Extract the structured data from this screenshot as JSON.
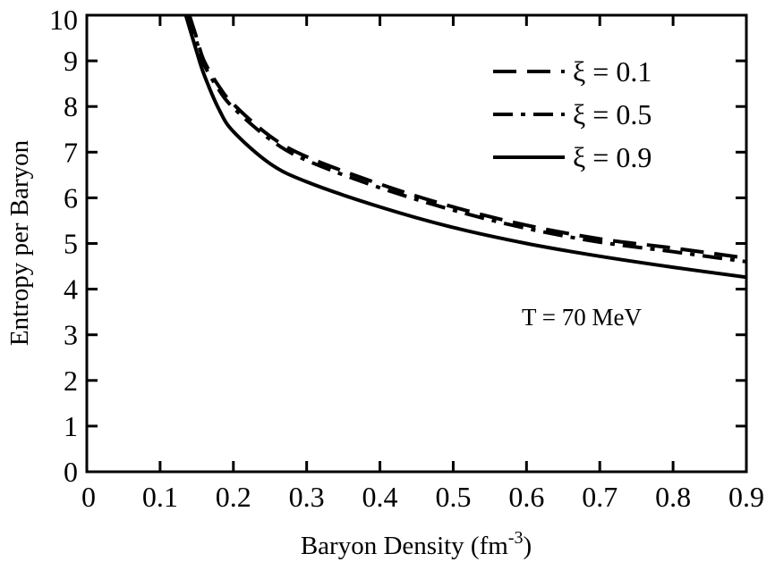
{
  "chart_data": {
    "type": "line",
    "title": "",
    "xlabel": "Baryon Density (fm",
    "xlabel_sup": "-3",
    "xlabel_tail": ")",
    "ylabel": "Entropy per Baryon",
    "xlim": [
      0,
      0.9
    ],
    "ylim": [
      0,
      10
    ],
    "xticks": [
      "0",
      "0.1",
      "0.2",
      "0.3",
      "0.4",
      "0.5",
      "0.6",
      "0.7",
      "0.8",
      "0.9"
    ],
    "yticks": [
      "0",
      "1",
      "2",
      "3",
      "4",
      "5",
      "6",
      "7",
      "8",
      "9",
      "10"
    ],
    "grid": false,
    "legend_position": "top-right",
    "annotation": "T = 70 MeV",
    "series": [
      {
        "name": "ξ = 0.1",
        "style": "dashed",
        "x": [
          0.14,
          0.15,
          0.16,
          0.18,
          0.2,
          0.25,
          0.3,
          0.4,
          0.5,
          0.6,
          0.7,
          0.8,
          0.9
        ],
        "y": [
          10.0,
          9.5,
          9.0,
          8.45,
          8.05,
          7.35,
          6.9,
          6.3,
          5.8,
          5.4,
          5.1,
          4.9,
          4.68
        ]
      },
      {
        "name": "ξ = 0.5",
        "style": "dash-dot",
        "x": [
          0.138,
          0.15,
          0.16,
          0.18,
          0.2,
          0.25,
          0.3,
          0.4,
          0.5,
          0.6,
          0.7,
          0.8,
          0.9
        ],
        "y": [
          10.0,
          9.42,
          8.92,
          8.37,
          7.97,
          7.28,
          6.82,
          6.22,
          5.73,
          5.33,
          5.03,
          4.82,
          4.6
        ]
      },
      {
        "name": "ξ = 0.9",
        "style": "solid",
        "x": [
          0.135,
          0.15,
          0.16,
          0.18,
          0.2,
          0.25,
          0.3,
          0.4,
          0.5,
          0.6,
          0.7,
          0.8,
          0.9
        ],
        "y": [
          10.0,
          9.2,
          8.7,
          7.95,
          7.45,
          6.75,
          6.35,
          5.8,
          5.35,
          5.0,
          4.72,
          4.48,
          4.26
        ]
      }
    ]
  }
}
